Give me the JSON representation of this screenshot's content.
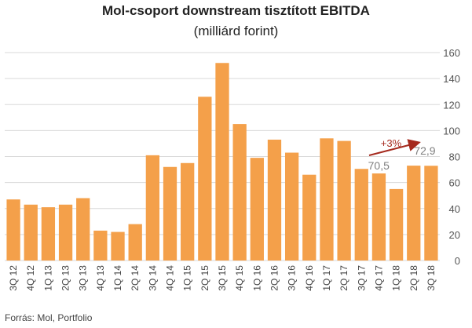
{
  "chart_data": {
    "type": "bar",
    "title": "Mol-csoport downstream tisztított EBITDA",
    "subtitle": "(milliárd forint)",
    "xlabel": "",
    "ylabel": "",
    "ylim": [
      0,
      160
    ],
    "yticks": [
      "0",
      "20",
      "40",
      "60",
      "80",
      "100",
      "120",
      "140",
      "160"
    ],
    "y_axis_position": "right",
    "grid": true,
    "bar_color": "#F4A04A",
    "categories": [
      "3Q 12",
      "4Q 12",
      "1Q 13",
      "2Q 13",
      "3Q 13",
      "4Q 13",
      "1Q 14",
      "2Q 14",
      "3Q 14",
      "4Q 14",
      "1Q 15",
      "2Q 15",
      "3Q 15",
      "4Q 15",
      "1Q 16",
      "2Q 16",
      "3Q 16",
      "4Q 16",
      "1Q 17",
      "2Q 17",
      "3Q 17",
      "4Q 17",
      "1Q 18",
      "2Q 18",
      "3Q 18"
    ],
    "values": [
      47,
      43,
      41,
      43,
      48,
      23,
      22,
      28,
      81,
      72,
      75,
      126,
      152,
      105,
      79,
      93,
      83,
      66,
      94,
      92,
      70.5,
      67,
      55,
      73,
      72.9
    ],
    "annotations": {
      "label_a": "70,5",
      "label_b": "72,9",
      "change": "+3%",
      "arrow_color": "#A52A1E"
    }
  },
  "source": "Forrás: Mol, Portfolio"
}
